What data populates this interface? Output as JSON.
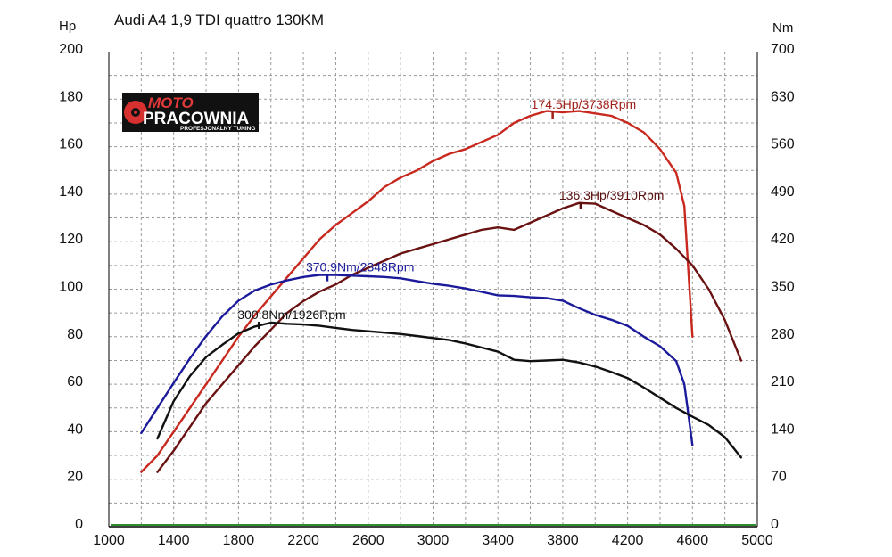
{
  "chart_data": {
    "type": "line",
    "title": "Audi A4 1,9 TDI quattro 130KM",
    "left_unit": "Hp",
    "right_unit": "Nm",
    "x_ticks": [
      "1000",
      "1400",
      "1800",
      "2200",
      "2600",
      "3000",
      "3400",
      "3800",
      "4200",
      "4600",
      "5000"
    ],
    "y_left_ticks": [
      "0",
      "20",
      "40",
      "60",
      "80",
      "100",
      "120",
      "140",
      "160",
      "180",
      "200"
    ],
    "y_right_ticks": [
      "0",
      "70",
      "140",
      "210",
      "280",
      "350",
      "420",
      "490",
      "560",
      "630",
      "700"
    ],
    "xlim": [
      1000,
      5000
    ],
    "ylim_left": [
      0,
      200
    ],
    "ylim_right": [
      0,
      700
    ],
    "grid": true,
    "logo": {
      "top": "MOTO",
      "main": "PRACOWNIA",
      "sub": "PROFESJONALNY TUNING"
    },
    "colors": {
      "power_after": "#c8281e",
      "power_before": "#6a1212",
      "torque_after": "#1a1a9a",
      "torque_before": "#111111",
      "baseline": "#2f8f2f",
      "grid": "#9a9a9a"
    },
    "annotations": [
      {
        "text": "174.5Hp/3738Rpm",
        "x": 3738,
        "y": 174.5,
        "axis": "left",
        "color": "#a0201a"
      },
      {
        "text": "136.3Hp/3910Rpm",
        "x": 3910,
        "y": 136.3,
        "axis": "left",
        "color": "#5a1010"
      },
      {
        "text": "370.9Nm/2348Rpm",
        "x": 2348,
        "y": 370.9,
        "axis": "right",
        "color": "#1a1a9a"
      },
      {
        "text": "300.8Nm/1926Rpm",
        "x": 1926,
        "y": 300.8,
        "axis": "right",
        "color": "#111111"
      }
    ],
    "series": [
      {
        "axis": "left",
        "color": "#c8281e",
        "x": [
          1200,
          1300,
          1400,
          1500,
          1600,
          1700,
          1800,
          1900,
          2000,
          2100,
          2200,
          2300,
          2400,
          2500,
          2600,
          2700,
          2800,
          2900,
          3000,
          3100,
          3200,
          3300,
          3400,
          3500,
          3600,
          3700,
          3800,
          3900,
          4000,
          4100,
          4200,
          4300,
          4400,
          4500,
          4550,
          4600
        ],
        "y": [
          23,
          30,
          40,
          50,
          60,
          70,
          80,
          89,
          97,
          105,
          113,
          121,
          127,
          132,
          137,
          143,
          147,
          150,
          154,
          157,
          159,
          162,
          165,
          170,
          173,
          175,
          174.5,
          175,
          174,
          173,
          170,
          166,
          159,
          149,
          135,
          80
        ]
      },
      {
        "axis": "left",
        "color": "#6a1212",
        "x": [
          1300,
          1400,
          1500,
          1600,
          1700,
          1800,
          1900,
          2000,
          2100,
          2200,
          2300,
          2400,
          2500,
          2600,
          2700,
          2800,
          2900,
          3000,
          3100,
          3200,
          3300,
          3400,
          3500,
          3600,
          3700,
          3800,
          3900,
          4000,
          4100,
          4200,
          4300,
          4400,
          4500,
          4600,
          4700,
          4800,
          4900
        ],
        "y": [
          23,
          32,
          42,
          52,
          60,
          68,
          76,
          83,
          90,
          95,
          99,
          102,
          106,
          109,
          112,
          115,
          117,
          119,
          121,
          123,
          125,
          126,
          125,
          128,
          131,
          134,
          136.3,
          136,
          133,
          130,
          127,
          123,
          117,
          110,
          100,
          87,
          70
        ]
      },
      {
        "axis": "right",
        "color": "#1a1a9a",
        "x": [
          1200,
          1300,
          1400,
          1500,
          1600,
          1700,
          1800,
          1900,
          2000,
          2100,
          2200,
          2300,
          2400,
          2500,
          2600,
          2700,
          2800,
          2900,
          3000,
          3100,
          3200,
          3300,
          3400,
          3500,
          3600,
          3700,
          3800,
          3900,
          4000,
          4100,
          4200,
          4300,
          4400,
          4500,
          4550,
          4600
        ],
        "y": [
          138,
          175,
          212,
          248,
          281,
          310,
          333,
          348,
          357,
          363,
          368,
          371,
          370.9,
          370,
          369,
          368,
          366,
          362,
          358,
          355,
          351,
          346,
          341,
          340,
          338,
          337,
          333,
          322,
          312,
          305,
          296,
          280,
          266,
          244,
          210,
          120
        ]
      },
      {
        "axis": "right",
        "color": "#111111",
        "x": [
          1300,
          1400,
          1500,
          1600,
          1700,
          1800,
          1900,
          2000,
          2100,
          2200,
          2300,
          2400,
          2500,
          2600,
          2700,
          2800,
          2900,
          3000,
          3100,
          3200,
          3300,
          3400,
          3500,
          3600,
          3700,
          3800,
          3900,
          4000,
          4100,
          4200,
          4300,
          4400,
          4500,
          4600,
          4700,
          4800,
          4900
        ],
        "y": [
          130,
          185,
          222,
          250,
          268,
          285,
          295,
          300.8,
          299,
          298,
          296,
          293,
          290,
          288,
          286,
          284,
          281,
          278,
          275,
          270,
          264,
          258,
          246,
          244,
          245,
          246,
          242,
          236,
          228,
          219,
          205,
          190,
          175,
          162,
          150,
          132,
          102
        ]
      }
    ]
  }
}
